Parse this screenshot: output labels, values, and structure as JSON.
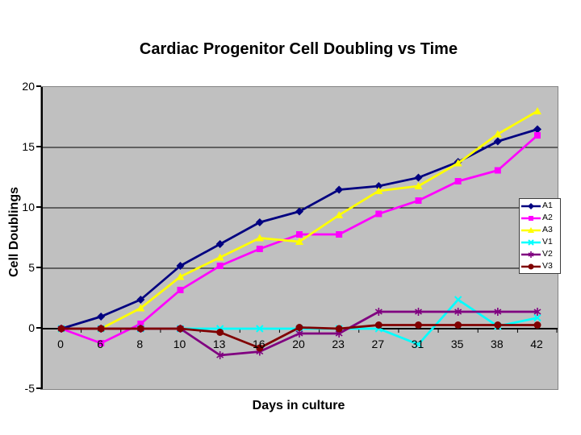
{
  "chart_data": {
    "type": "line",
    "title": "Cardiac Progenitor Cell Doubling vs Time",
    "xlabel": "Days in culture",
    "ylabel": "Cell Doublings",
    "categories": [
      "0",
      "6",
      "8",
      "10",
      "13",
      "16",
      "20",
      "23",
      "27",
      "31",
      "35",
      "38",
      "42"
    ],
    "ylim": [
      -5,
      20
    ],
    "yticks": [
      20,
      15,
      10,
      5,
      0,
      -5
    ],
    "grid": true,
    "legend_position": "right",
    "plot_background": "#c0c0c0",
    "gridline_color": "#000000",
    "series": [
      {
        "name": "A1",
        "color": "#000080",
        "marker": "diamond",
        "values": [
          0,
          1.0,
          2.4,
          5.2,
          7.0,
          8.8,
          9.7,
          11.5,
          11.8,
          12.5,
          13.8,
          15.5,
          16.5
        ]
      },
      {
        "name": "A2",
        "color": "#ff00ff",
        "marker": "square",
        "values": [
          0,
          -1.2,
          0.4,
          3.2,
          5.2,
          6.6,
          7.8,
          7.8,
          9.5,
          10.6,
          12.2,
          13.1,
          16.0
        ]
      },
      {
        "name": "A3",
        "color": "#ffff00",
        "marker": "triangle",
        "values": [
          0,
          0,
          1.7,
          4.3,
          5.9,
          7.5,
          7.2,
          9.4,
          11.4,
          11.8,
          13.7,
          16.1,
          18.0
        ]
      },
      {
        "name": "V1",
        "color": "#00ffff",
        "marker": "x",
        "values": [
          0,
          0,
          0,
          0,
          0,
          0,
          0,
          0,
          0,
          -1.3,
          2.4,
          0.2,
          0.9
        ]
      },
      {
        "name": "V2",
        "color": "#800080",
        "marker": "asterisk",
        "values": [
          0,
          0,
          0,
          0,
          -2.2,
          -1.9,
          -0.4,
          -0.4,
          1.4,
          1.4,
          1.4,
          1.4,
          1.4
        ]
      },
      {
        "name": "V3",
        "color": "#800000",
        "marker": "circle",
        "values": [
          0,
          0,
          0,
          0,
          -0.3,
          -1.6,
          0.1,
          0,
          0.3,
          0.3,
          0.3,
          0.3,
          0.3
        ]
      }
    ]
  }
}
